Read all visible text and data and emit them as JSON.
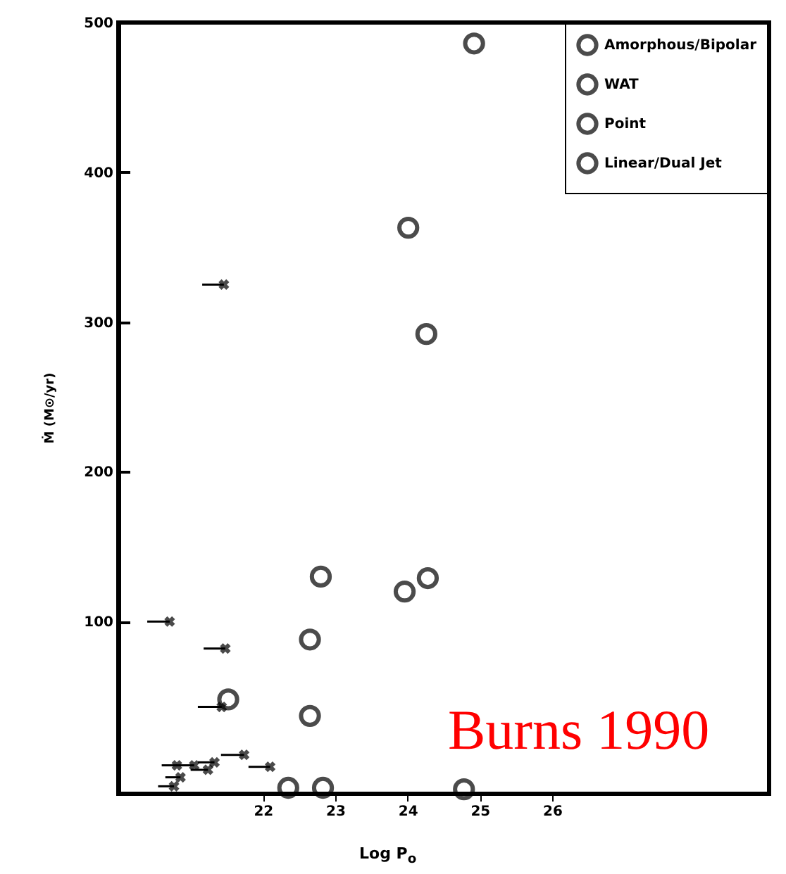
{
  "chart_data": {
    "type": "scatter",
    "xlabel": "Log P$_{o}$",
    "ylabel": "Ṁ (M⊙/yr)",
    "xlim": [
      20,
      29
    ],
    "xticks": [
      22,
      23,
      24,
      25,
      26
    ],
    "ylim": [
      -15,
      500
    ],
    "yticks": [
      100,
      200,
      300,
      400,
      500
    ],
    "grid": false,
    "legend": "top right",
    "series": [
      {
        "name": "Amorphous/Bipolar",
        "color": "#000000",
        "marker": "circle",
        "x": [
          24.92,
          24.26,
          22.8,
          23.96,
          24.28,
          22.65
        ],
        "values": [
          486,
          292,
          130,
          120,
          129,
          37
        ]
      },
      {
        "name": "WAT",
        "color": "#000000",
        "marker": "circle",
        "x": [
          24.01,
          22.65
        ],
        "values": [
          363,
          88
        ]
      },
      {
        "name": "Point",
        "color": "#000000",
        "marker": "circle",
        "x": [
          21.52,
          24.78
        ],
        "values": [
          48,
          -12
        ]
      },
      {
        "name": "Linear/Dual Jet",
        "color": "#000000",
        "marker": "circle",
        "x": [
          22.35,
          22.83
        ],
        "values": [
          -11,
          -11
        ]
      },
      {
        "color": "#000000",
        "marker": "cross",
        "x": [
          20.71,
          21.46,
          21.48,
          21.43,
          21.74,
          22.1,
          20.81,
          21.05,
          21.33,
          20.86,
          20.77,
          21.24
        ],
        "values": [
          100,
          325,
          82,
          43,
          11,
          3,
          4,
          4,
          6,
          -4,
          -10,
          1
        ],
        "xerrors": [
          [
            20.4,
            20.71
          ],
          [
            21.16,
            21.46
          ],
          [
            21.18,
            21.48
          ],
          [
            21.1,
            21.43
          ],
          [
            21.42,
            21.74
          ],
          [
            21.8,
            22.1
          ],
          [
            20.6,
            20.81
          ],
          [
            20.8,
            21.05
          ],
          [
            21.1,
            21.33
          ],
          [
            20.65,
            20.86
          ],
          [
            20.55,
            20.77
          ],
          [
            21.0,
            21.24
          ]
        ]
      }
    ],
    "annotations": [
      "Burns 1990"
    ]
  }
}
